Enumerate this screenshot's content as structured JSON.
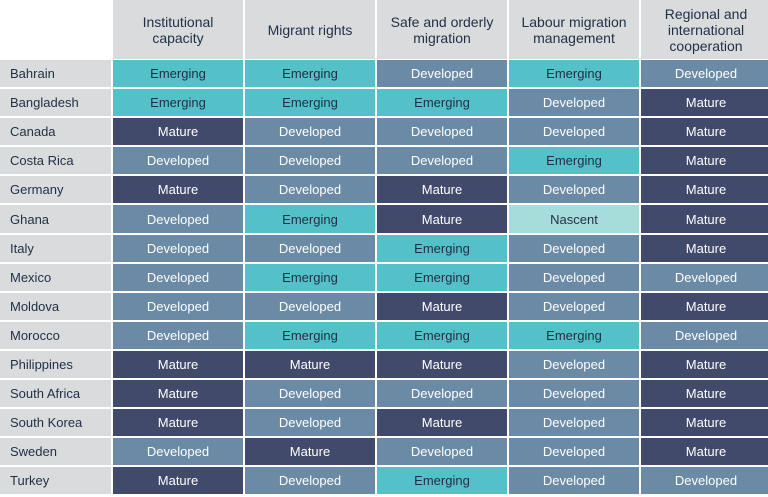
{
  "chart_data": {
    "type": "table",
    "columns": [
      "Institutional capacity",
      "Migrant rights",
      "Safe and orderly migration",
      "Labour migration management",
      "Regional and international cooperation"
    ],
    "rows": [
      {
        "country": "Bahrain",
        "values": [
          "Emerging",
          "Emerging",
          "Developed",
          "Emerging",
          "Developed"
        ]
      },
      {
        "country": "Bangladesh",
        "values": [
          "Emerging",
          "Emerging",
          "Emerging",
          "Developed",
          "Mature"
        ]
      },
      {
        "country": "Canada",
        "values": [
          "Mature",
          "Developed",
          "Developed",
          "Developed",
          "Mature"
        ]
      },
      {
        "country": "Costa Rica",
        "values": [
          "Developed",
          "Developed",
          "Developed",
          "Emerging",
          "Mature"
        ]
      },
      {
        "country": "Germany",
        "values": [
          "Mature",
          "Developed",
          "Mature",
          "Developed",
          "Mature"
        ]
      },
      {
        "country": "Ghana",
        "values": [
          "Developed",
          "Emerging",
          "Mature",
          "Nascent",
          "Mature"
        ]
      },
      {
        "country": "Italy",
        "values": [
          "Developed",
          "Developed",
          "Emerging",
          "Developed",
          "Mature"
        ]
      },
      {
        "country": "Mexico",
        "values": [
          "Developed",
          "Emerging",
          "Emerging",
          "Developed",
          "Developed"
        ]
      },
      {
        "country": "Moldova",
        "values": [
          "Developed",
          "Developed",
          "Mature",
          "Developed",
          "Mature"
        ]
      },
      {
        "country": "Morocco",
        "values": [
          "Developed",
          "Emerging",
          "Emerging",
          "Emerging",
          "Developed"
        ]
      },
      {
        "country": "Philippines",
        "values": [
          "Mature",
          "Mature",
          "Mature",
          "Developed",
          "Mature"
        ]
      },
      {
        "country": "South Africa",
        "values": [
          "Mature",
          "Developed",
          "Developed",
          "Developed",
          "Mature"
        ]
      },
      {
        "country": "South Korea",
        "values": [
          "Mature",
          "Developed",
          "Mature",
          "Developed",
          "Mature"
        ]
      },
      {
        "country": "Sweden",
        "values": [
          "Developed",
          "Mature",
          "Developed",
          "Developed",
          "Mature"
        ]
      },
      {
        "country": "Turkey",
        "values": [
          "Mature",
          "Developed",
          "Emerging",
          "Developed",
          "Developed"
        ]
      }
    ],
    "level_colors": {
      "Nascent": "#a6dcd9",
      "Emerging": "#54c1c8",
      "Developed": "#6b8aa5",
      "Mature": "#414a6b"
    },
    "level_text_colors": {
      "Nascent": "#1f2f44",
      "Emerging": "#1f2f44",
      "Developed": "#ffffff",
      "Mature": "#ffffff"
    }
  }
}
